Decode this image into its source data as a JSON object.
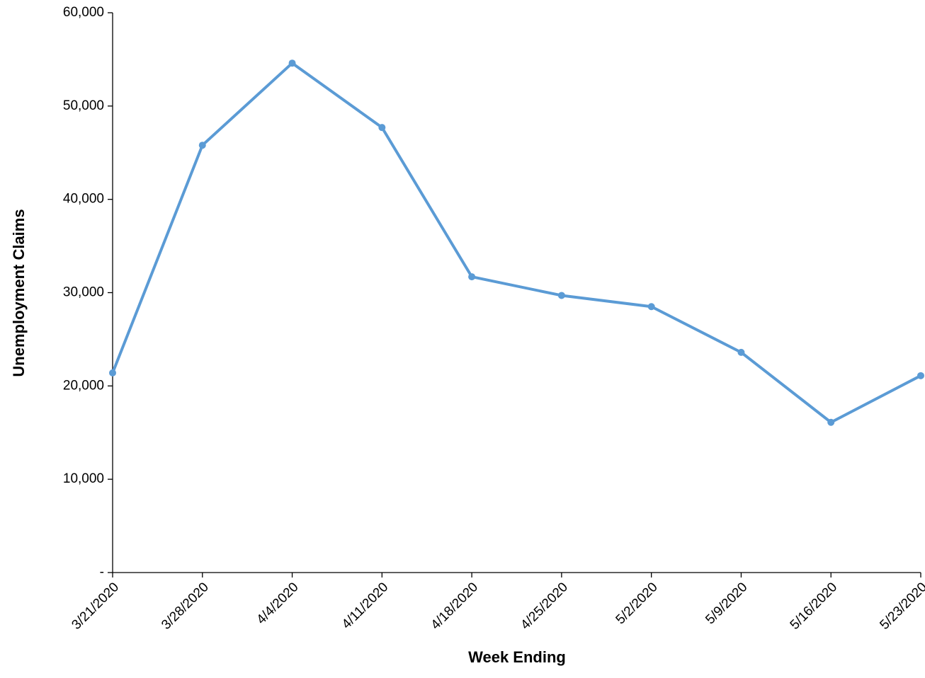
{
  "chart_data": {
    "type": "line",
    "x_label": "Week Ending",
    "y_label": "Unemployment Claims",
    "categories": [
      "3/21/2020",
      "3/28/2020",
      "4/4/2020",
      "4/11/2020",
      "4/18/2020",
      "4/25/2020",
      "5/2/2020",
      "5/9/2020",
      "5/16/2020",
      "5/23/2020"
    ],
    "series": [
      {
        "name": "Unemployment Claims",
        "color": "#5b9bd5",
        "values": [
          21400,
          45800,
          54600,
          47700,
          31700,
          29700,
          28500,
          23600,
          16100,
          21100
        ]
      }
    ],
    "ylim": [
      0,
      60000
    ],
    "yticks": [
      {
        "value": 0,
        "label": "-"
      },
      {
        "value": 10000,
        "label": "10,000"
      },
      {
        "value": 20000,
        "label": "20,000"
      },
      {
        "value": 30000,
        "label": "30,000"
      },
      {
        "value": 40000,
        "label": "40,000"
      },
      {
        "value": 50000,
        "label": "50,000"
      },
      {
        "value": 60000,
        "label": "60,000"
      }
    ],
    "grid": false
  }
}
